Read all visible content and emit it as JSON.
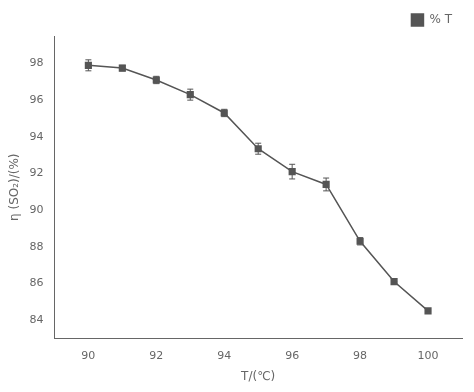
{
  "chart_data": {
    "type": "line",
    "xlabel": "T/(℃)",
    "ylabel": "η (SO₂)/(%)",
    "x": [
      90,
      91,
      92,
      93,
      94,
      95,
      96,
      97,
      98,
      99,
      100
    ],
    "series": [
      {
        "name": "% T",
        "color": "#555555",
        "marker": "square",
        "line_style": "solid",
        "values": [
          97.9,
          97.75,
          97.1,
          96.3,
          95.3,
          93.35,
          92.1,
          91.4,
          88.3,
          86.1,
          84.5
        ],
        "yerr": [
          0.3,
          0.15,
          0.2,
          0.3,
          0.2,
          0.3,
          0.4,
          0.35,
          0.2,
          0.0,
          0.0
        ]
      }
    ],
    "xlim": [
      89.0,
      101.0
    ],
    "ylim": [
      83.0,
      99.5
    ],
    "xticks": [
      90,
      92,
      94,
      96,
      98,
      100
    ],
    "yticks": [
      84,
      86,
      88,
      90,
      92,
      94,
      96,
      98
    ],
    "grid": false,
    "legend": "upper right"
  }
}
